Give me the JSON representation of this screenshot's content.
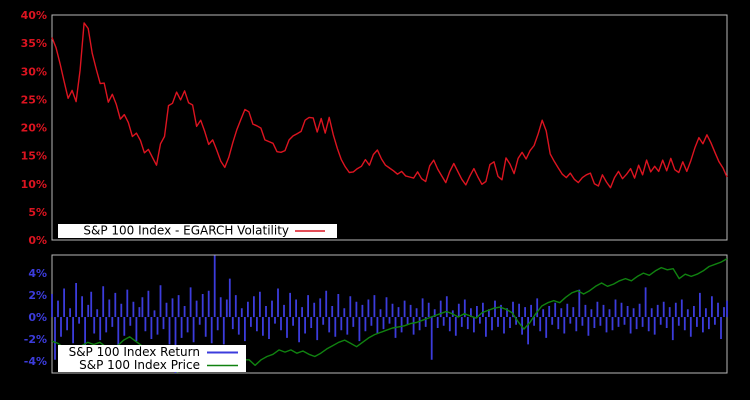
{
  "figure": {
    "background": "#000000",
    "frame_color": "#b9b9b9",
    "legend_bg": "#ffffff",
    "legend_text_color": "#000000"
  },
  "chart_data": [
    {
      "type": "line",
      "panel": "top",
      "title": "",
      "xlabel": "",
      "ylabel": "",
      "ylim": [
        0,
        40
      ],
      "ytick_values": [
        0,
        5,
        10,
        15,
        20,
        25,
        30,
        35,
        40
      ],
      "ytick_labels": [
        "0%",
        "5%",
        "10%",
        "15%",
        "20%",
        "25%",
        "30%",
        "35%",
        "40%"
      ],
      "tick_label_color": "#dc1420",
      "grid": false,
      "legend_position": "lower-left",
      "series": [
        {
          "name": "S&P 100 Index - EGARCH Volatility",
          "type": "line",
          "color": "#dc1420",
          "values": [
            36.0,
            34.2,
            31.4,
            28.2,
            25.2,
            26.6,
            24.6,
            30.2,
            38.6,
            37.6,
            33.2,
            30.4,
            27.8,
            27.9,
            24.5,
            25.9,
            24.1,
            21.5,
            22.3,
            20.9,
            18.4,
            19.0,
            17.7,
            15.5,
            16.1,
            14.7,
            13.3,
            17.1,
            18.4,
            23.9,
            24.3,
            26.3,
            24.9,
            26.5,
            24.4,
            24.0,
            20.2,
            21.3,
            19.3,
            17.0,
            17.8,
            16.0,
            14.0,
            12.9,
            14.7,
            17.3,
            19.6,
            21.4,
            23.2,
            22.8,
            20.6,
            20.3,
            19.9,
            17.8,
            17.5,
            17.2,
            15.7,
            15.6,
            15.9,
            17.8,
            18.5,
            18.9,
            19.3,
            21.3,
            21.8,
            21.7,
            19.2,
            21.6,
            19.0,
            21.8,
            18.7,
            16.3,
            14.3,
            13.0,
            12.0,
            12.1,
            12.7,
            13.1,
            14.3,
            13.3,
            15.2,
            16.0,
            14.4,
            13.3,
            12.8,
            12.3,
            11.7,
            12.2,
            11.4,
            11.2,
            11.0,
            12.1,
            10.9,
            10.4,
            13.2,
            14.2,
            12.6,
            11.4,
            10.2,
            12.2,
            13.6,
            12.2,
            10.8,
            9.8,
            11.4,
            12.7,
            11.2,
            9.9,
            10.4,
            13.4,
            13.9,
            11.3,
            10.7,
            14.6,
            13.5,
            11.8,
            14.5,
            15.6,
            14.4,
            15.9,
            16.8,
            18.9,
            21.3,
            19.4,
            15.3,
            14.0,
            12.8,
            11.7,
            11.1,
            11.9,
            10.8,
            10.2,
            11.1,
            11.6,
            11.9,
            10.0,
            9.6,
            11.6,
            10.3,
            9.3,
            11.1,
            12.2,
            10.9,
            11.7,
            12.7,
            11.0,
            13.3,
            11.6,
            14.2,
            12.1,
            13.1,
            12.2,
            14.2,
            12.3,
            14.5,
            12.5,
            12.0,
            13.9,
            12.2,
            14.1,
            16.4,
            18.2,
            17.1,
            18.7,
            17.3,
            15.6,
            13.9,
            12.8,
            11.2
          ]
        }
      ]
    },
    {
      "type": "bar",
      "panel": "bottom",
      "title": "",
      "xlabel": "",
      "ylabel": "",
      "ylim": [
        -5.1,
        5.65
      ],
      "ytick_values": [
        4,
        2,
        0,
        -2,
        -4
      ],
      "ytick_labels": [
        "4%",
        "2%",
        "0%",
        "-2%",
        "-4%"
      ],
      "tick_label_color": "#3c3cdc",
      "grid": false,
      "legend_position": "lower-left",
      "series": [
        {
          "name": "S&P 100 Index Return",
          "type": "bar",
          "color": "#3c3cdc",
          "values": [
            2.1,
            -3.9,
            1.5,
            -1.8,
            2.6,
            -1.2,
            0.8,
            -2.4,
            3.1,
            -0.6,
            1.9,
            -2.8,
            1.1,
            2.3,
            -1.5,
            0.7,
            -2.1,
            2.8,
            -1.4,
            1.6,
            -0.9,
            2.2,
            -2.6,
            1.2,
            -1.7,
            2.5,
            -0.8,
            1.4,
            -2.2,
            0.9,
            1.8,
            -1.3,
            2.4,
            -2.0,
            0.6,
            -1.6,
            2.9,
            -1.1,
            1.3,
            -2.5,
            1.7,
            -5.1,
            2.0,
            -1.9,
            1.0,
            -1.4,
            2.7,
            -2.3,
            1.5,
            -0.7,
            2.1,
            -1.8,
            2.4,
            -2.4,
            5.6,
            -1.2,
            1.8,
            -2.5,
            1.6,
            3.5,
            -1.1,
            2.0,
            -1.6,
            0.8,
            -2.2,
            1.4,
            -0.9,
            1.9,
            -1.3,
            2.3,
            -1.7,
            1.0,
            -2.0,
            1.5,
            -0.6,
            2.6,
            -1.2,
            1.1,
            -1.9,
            2.2,
            -0.8,
            1.6,
            -2.3,
            0.9,
            -1.5,
            2.0,
            -1.0,
            1.3,
            -2.1,
            1.7,
            -0.7,
            2.4,
            -1.4,
            1.0,
            -1.8,
            2.1,
            -1.2,
            0.8,
            -1.6,
            1.9,
            -0.9,
            1.4,
            -2.2,
            1.1,
            -1.3,
            1.6,
            -0.8,
            2.0,
            -1.5,
            0.7,
            -1.1,
            1.8,
            -0.6,
            1.2,
            -1.9,
            0.9,
            -1.4,
            1.5,
            -0.7,
            1.1,
            -1.6,
            0.8,
            -1.2,
            1.7,
            -0.9,
            1.3,
            -3.9,
            0.7,
            -1.0,
            1.5,
            -0.8,
            1.9,
            -1.3,
            0.6,
            -1.7,
            1.2,
            -0.9,
            1.6,
            -1.1,
            0.8,
            -1.4,
            1.0,
            -0.6,
            1.3,
            -1.8,
            0.7,
            -1.2,
            1.5,
            -0.9,
            1.1,
            -1.5,
            0.8,
            -1.0,
            1.4,
            -0.7,
            1.2,
            -1.6,
            0.9,
            -2.5,
            1.1,
            -0.8,
            1.7,
            -1.3,
            0.7,
            -1.9,
            1.0,
            -0.7,
            1.3,
            -1.1,
            0.8,
            -1.5,
            1.2,
            -0.6,
            0.9,
            -1.3,
            2.5,
            -0.8,
            1.1,
            -1.7,
            0.7,
            -1.0,
            1.4,
            -0.8,
            1.1,
            -1.4,
            0.7,
            -1.2,
            1.6,
            -0.9,
            1.3,
            -0.7,
            1.0,
            -1.5,
            0.8,
            -1.1,
            1.2,
            -0.9,
            2.7,
            -1.3,
            0.8,
            -1.6,
            1.1,
            -0.7,
            1.4,
            -1.0,
            0.9,
            -2.1,
            1.3,
            -0.8,
            1.6,
            -1.2,
            0.7,
            -1.8,
            1.0,
            -0.9,
            2.2,
            -1.4,
            0.8,
            -1.1,
            1.9,
            -0.7,
            1.3,
            -2.0,
            0.9,
            1.5
          ]
        },
        {
          "name": "S&P 100 Index Price",
          "type": "line",
          "color": "#108210",
          "values": [
            -2.2,
            -2.4,
            -2.8,
            -2.6,
            -2.9,
            -2.6,
            -2.3,
            -2.5,
            -2.3,
            -2.7,
            -2.9,
            -2.6,
            -2.1,
            -1.8,
            -2.2,
            -2.6,
            -3.1,
            -3.4,
            -3.8,
            -4.3,
            -4.7,
            -5.0,
            -4.6,
            -4.9,
            -4.6,
            -4.2,
            -4.4,
            -4.0,
            -4.3,
            -4.1,
            -4.4,
            -4.2,
            -3.9,
            -3.9,
            -4.4,
            -3.9,
            -3.6,
            -3.4,
            -3.0,
            -3.2,
            -3.0,
            -3.3,
            -3.1,
            -3.4,
            -3.6,
            -3.3,
            -2.9,
            -2.6,
            -2.3,
            -2.1,
            -2.4,
            -2.7,
            -2.3,
            -1.9,
            -1.6,
            -1.4,
            -1.2,
            -1.0,
            -0.9,
            -0.8,
            -0.6,
            -0.5,
            -0.3,
            -0.1,
            0.1,
            0.3,
            0.5,
            0.3,
            0.0,
            0.3,
            0.1,
            -0.1,
            0.4,
            0.6,
            0.8,
            0.9,
            0.7,
            0.4,
            -0.4,
            -1.1,
            -0.5,
            0.3,
            1.0,
            1.3,
            1.5,
            1.3,
            1.8,
            2.2,
            2.4,
            2.1,
            2.4,
            2.8,
            3.1,
            2.8,
            3.0,
            3.3,
            3.5,
            3.3,
            3.7,
            4.0,
            3.8,
            4.2,
            4.5,
            4.3,
            4.4,
            3.5,
            3.9,
            3.7,
            3.9,
            4.2,
            4.6,
            4.8,
            5.0,
            5.3
          ]
        }
      ]
    }
  ]
}
